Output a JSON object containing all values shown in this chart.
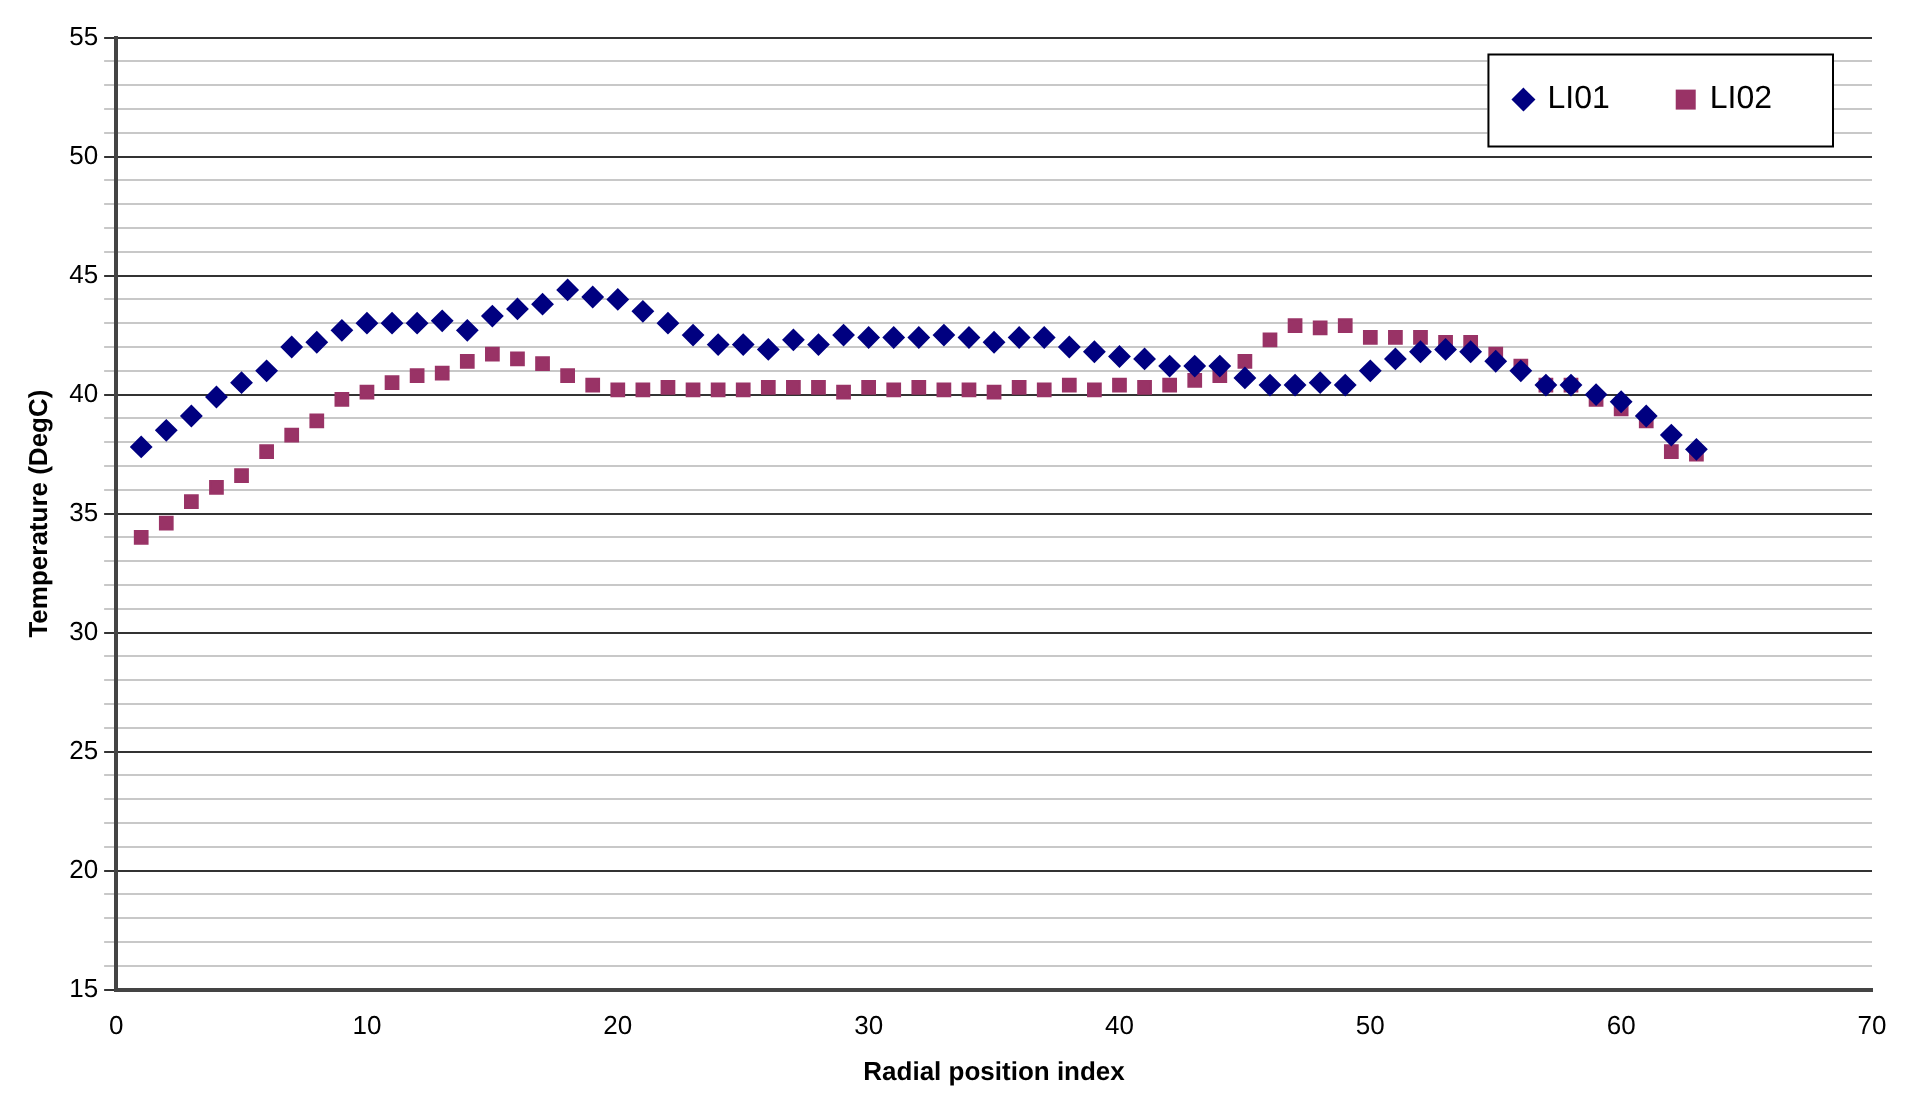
{
  "chart_data": {
    "type": "scatter",
    "xlabel": "Radial position index",
    "ylabel": "Temperature (DegC)",
    "xlim": [
      0,
      70
    ],
    "xticks": [
      0,
      10,
      20,
      30,
      40,
      50,
      60,
      70
    ],
    "ylim": [
      15,
      55
    ],
    "yticks": [
      15,
      {
        "value": 16,
        "label": null
      },
      {
        "value": 17,
        "label": null
      },
      {
        "value": 18,
        "label": null
      },
      {
        "value": 19,
        "label": null
      },
      20,
      {
        "value": 21,
        "label": null
      },
      {
        "value": 22,
        "label": null
      },
      {
        "value": 23,
        "label": null
      },
      {
        "value": 24,
        "label": null
      },
      25,
      {
        "value": 26,
        "label": null
      },
      {
        "value": 27,
        "label": null
      },
      {
        "value": 28,
        "label": null
      },
      {
        "value": 29,
        "label": null
      },
      30,
      {
        "value": 31,
        "label": null
      },
      {
        "value": 32,
        "label": null
      },
      {
        "value": 33,
        "label": null
      },
      {
        "value": 34,
        "label": null
      },
      35,
      {
        "value": 36,
        "label": null
      },
      {
        "value": 37,
        "label": null
      },
      {
        "value": 38,
        "label": null
      },
      {
        "value": 39,
        "label": null
      },
      40,
      {
        "value": 41,
        "label": null
      },
      {
        "value": 42,
        "label": null
      },
      {
        "value": 43,
        "label": null
      },
      {
        "value": 44,
        "label": null
      },
      45,
      {
        "value": 46,
        "label": null
      },
      {
        "value": 47,
        "label": null
      },
      {
        "value": 48,
        "label": null
      },
      {
        "value": 49,
        "label": null
      },
      50,
      {
        "value": 51,
        "label": null
      },
      {
        "value": 52,
        "label": null
      },
      {
        "value": 53,
        "label": null
      },
      {
        "value": 54,
        "label": null
      },
      55
    ],
    "grid": "y",
    "legend": "top right",
    "x": [
      1,
      2,
      3,
      4,
      5,
      6,
      7,
      8,
      9,
      10,
      11,
      12,
      13,
      14,
      15,
      16,
      17,
      18,
      19,
      20,
      21,
      22,
      23,
      24,
      25,
      26,
      27,
      28,
      29,
      30,
      31,
      32,
      33,
      34,
      35,
      36,
      37,
      38,
      39,
      40,
      41,
      42,
      43,
      44,
      45,
      46,
      47,
      48,
      49,
      50,
      51,
      52,
      53,
      54,
      55,
      56,
      57,
      58,
      59,
      60,
      61,
      62,
      63
    ],
    "series": [
      {
        "name": "LI01",
        "color": "#000080",
        "marker": "diamond",
        "values": [
          37.8,
          38.5,
          39.1,
          39.9,
          40.5,
          41.0,
          42.0,
          42.2,
          42.7,
          43.0,
          43.0,
          43.0,
          43.1,
          42.7,
          43.3,
          43.6,
          43.8,
          44.4,
          44.1,
          44.0,
          43.5,
          43.0,
          42.5,
          42.1,
          42.1,
          41.9,
          42.3,
          42.1,
          42.5,
          42.4,
          42.4,
          42.4,
          42.5,
          42.4,
          42.2,
          42.4,
          42.4,
          42.0,
          41.8,
          41.6,
          41.5,
          41.2,
          41.2,
          41.2,
          40.7,
          40.4,
          40.4,
          40.5,
          40.4,
          41.0,
          41.5,
          41.8,
          41.9,
          41.8,
          41.4,
          41.0,
          40.4,
          40.4,
          40.0,
          39.7,
          39.1,
          38.3,
          37.7
        ]
      },
      {
        "name": "LI02",
        "color": "#993366",
        "marker": "square",
        "values": [
          34.0,
          34.6,
          35.5,
          36.1,
          36.6,
          37.6,
          38.3,
          38.9,
          39.8,
          40.1,
          40.5,
          40.8,
          40.9,
          41.4,
          41.7,
          41.5,
          41.3,
          40.8,
          40.4,
          40.2,
          40.2,
          40.3,
          40.2,
          40.2,
          40.2,
          40.3,
          40.3,
          40.3,
          40.1,
          40.3,
          40.2,
          40.3,
          40.2,
          40.2,
          40.1,
          40.3,
          40.2,
          40.4,
          40.2,
          40.4,
          40.3,
          40.4,
          40.6,
          40.8,
          41.4,
          42.3,
          42.9,
          42.8,
          42.9,
          42.4,
          42.4,
          42.4,
          42.2,
          42.2,
          41.7,
          41.2,
          40.4,
          40.4,
          39.8,
          39.4,
          38.9,
          37.6,
          37.5
        ]
      }
    ]
  }
}
